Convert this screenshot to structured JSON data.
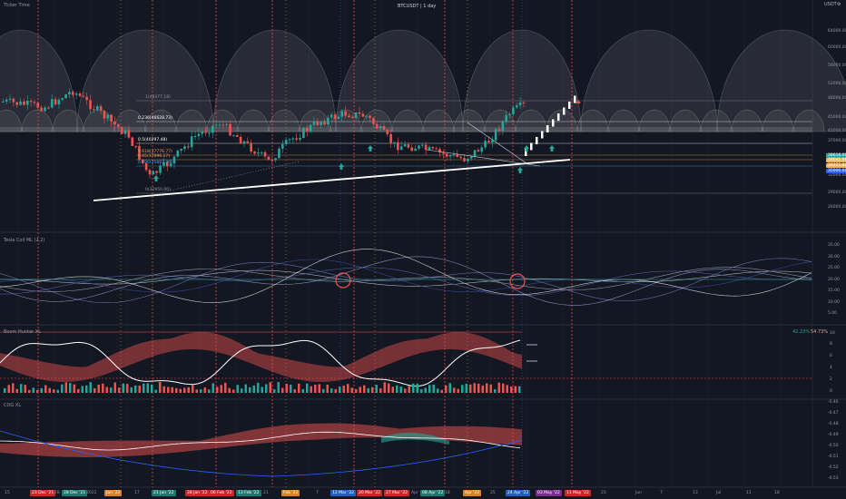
{
  "header": {
    "left_title": "Ticker Time",
    "symbol_title": "BTCUSDT | 1 day",
    "currency": "USDT",
    "top_icon": "settings-icon"
  },
  "price_axis": [
    "64000.00",
    "60000.00",
    "56000.00",
    "52000.00",
    "48000.00",
    "45000.00",
    "41000.00",
    "37000.00",
    "33500.00",
    "32000.00",
    "29000.00",
    "26000.00"
  ],
  "price_tags": [
    {
      "text": "38616.00",
      "color": "#26a69a"
    },
    {
      "text": "38041.00",
      "color": "#f2b35e"
    },
    {
      "text": "36421.00",
      "color": "#f2b35e"
    },
    {
      "text": "35000.00",
      "color": "#2962ff"
    }
  ],
  "fib_labels": [
    {
      "text": "1(48477.18)",
      "color": "#9598a1"
    },
    {
      "text": "0.236(46628.73)",
      "color": "#ffffff"
    },
    {
      "text": "0.5(40297.48)",
      "color": "#ffffff"
    },
    {
      "text": "0.618(37776.77)",
      "color": "#f7a35c"
    },
    {
      "text": "0.65(37096.17)",
      "color": "#f7a35c"
    },
    {
      "text": "0.786(35887.99)",
      "color": "#42a5f5"
    },
    {
      "text": "0(32950.00)",
      "color": "#9598a1"
    }
  ],
  "panes": {
    "tesla": {
      "title": "Tesla Coil ML (2,2)",
      "axis": [
        "35.00",
        "30.00",
        "25.00",
        "20.00",
        "15.00",
        "10.00",
        "5.00"
      ]
    },
    "boom": {
      "title": "Boom Hunter XL",
      "values": [
        "42.23%",
        "54.73%"
      ],
      "axis": [
        "10",
        "8",
        "6",
        "4",
        "2",
        "0"
      ]
    },
    "cog": {
      "title": "COG XL",
      "axis": [
        "-0.46",
        "-0.47",
        "-0.48",
        "-0.49",
        "-0.50",
        "-0.51",
        "-0.52",
        "-0.53"
      ]
    }
  },
  "time_axis": [
    {
      "text": "15",
      "style": "plain"
    },
    {
      "text": "23 Dec '21",
      "style": "red"
    },
    {
      "text": "28",
      "style": "plain"
    },
    {
      "text": "28 Dec '21",
      "style": "teal"
    },
    {
      "text": "2022",
      "style": "plain"
    },
    {
      "text": "Jan '22",
      "style": "orange"
    },
    {
      "text": "17",
      "style": "plain"
    },
    {
      "text": "21 Jan '22",
      "style": "teal"
    },
    {
      "text": "28 Jan '22",
      "style": "red"
    },
    {
      "text": "06 Feb '22",
      "style": "red"
    },
    {
      "text": "13 Feb '22",
      "style": "teal"
    },
    {
      "text": "21",
      "style": "plain"
    },
    {
      "text": "Feb '22",
      "style": "orange"
    },
    {
      "text": "7",
      "style": "plain"
    },
    {
      "text": "12 Mar '22",
      "style": "blue"
    },
    {
      "text": "20 Mar '22",
      "style": "red"
    },
    {
      "text": "27 Mar '22",
      "style": "red"
    },
    {
      "text": "Apr",
      "style": "plain"
    },
    {
      "text": "08 Apr '22",
      "style": "teal"
    },
    {
      "text": "18",
      "style": "plain"
    },
    {
      "text": "Apr '22",
      "style": "orange"
    },
    {
      "text": "25",
      "style": "plain"
    },
    {
      "text": "24 Apr '22",
      "style": "blue"
    },
    {
      "text": "03 May '22",
      "style": "purple"
    },
    {
      "text": "11 May '22",
      "style": "red"
    },
    {
      "text": "23",
      "style": "plain"
    },
    {
      "text": "Jun",
      "style": "plain"
    },
    {
      "text": "7",
      "style": "plain"
    },
    {
      "text": "13",
      "style": "plain"
    },
    {
      "text": "Jul",
      "style": "plain"
    },
    {
      "text": "11",
      "style": "plain"
    },
    {
      "text": "18",
      "style": "plain"
    }
  ],
  "colors": {
    "background": "#131722",
    "up": "#26a69a",
    "down": "#ef5350",
    "cycle_line": "#ef5350",
    "grid": "#1e222d"
  }
}
